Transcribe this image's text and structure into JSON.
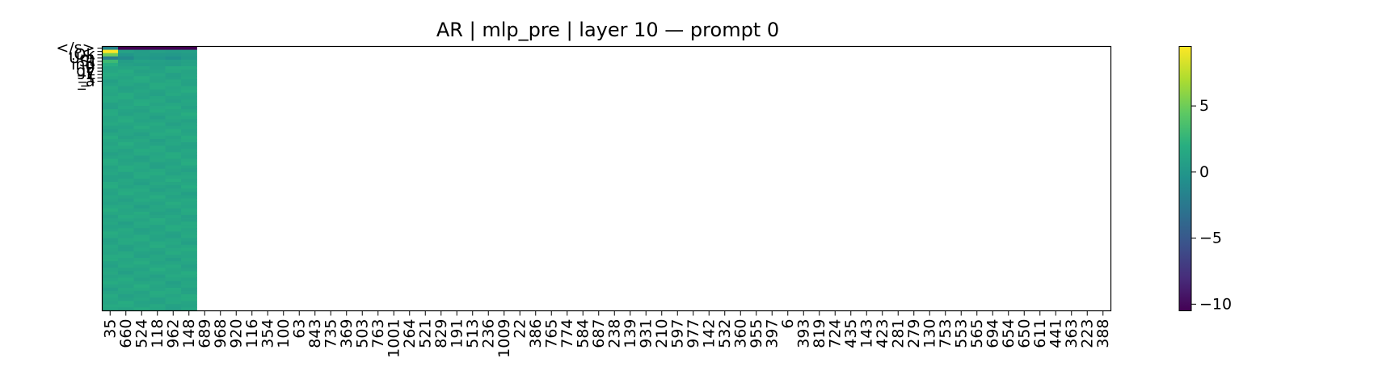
{
  "chart_data": {
    "type": "heatmap",
    "title": "AR | mlp_pre | layer 10 — prompt 0",
    "xlabel": "",
    "ylabel": "",
    "x_tick_labels": [
      "35",
      "660",
      "524",
      "118",
      "962",
      "148",
      "689",
      "968",
      "920",
      "116",
      "354",
      "100",
      "63",
      "843",
      "735",
      "369",
      "503",
      "763",
      "1001",
      "264",
      "521",
      "829",
      "191",
      "513",
      "236",
      "1009",
      "22",
      "386",
      "765",
      "774",
      "584",
      "687",
      "238",
      "139",
      "931",
      "210",
      "597",
      "977",
      "142",
      "532",
      "360",
      "955",
      "397",
      "6",
      "393",
      "819",
      "724",
      "435",
      "143",
      "423",
      "281",
      "279",
      "130",
      "753",
      "553",
      "565",
      "694",
      "654",
      "650",
      "611",
      "441",
      "363",
      "223",
      "388"
    ],
    "y_tick_labels": [
      "</s>",
      "",
      "Ok",
      "Um",
      "St",
      "ing",
      "_P",
      "gy",
      "_L",
      "_t",
      "_a"
    ],
    "n_rows": 80,
    "n_filled_columns": 6,
    "row_values": {
      "row0": [
        -1.5,
        -10.5,
        -10.5,
        -10.5,
        -10.5,
        -10.5
      ],
      "row1": [
        9.5,
        1.0,
        0.5,
        0.8,
        0.6,
        0.7
      ],
      "row2": [
        5.0,
        0.0,
        0.5,
        0.3,
        0.2,
        0.4
      ],
      "row3": [
        -2.0,
        -1.0,
        0.3,
        0.0,
        -0.5,
        0.2
      ],
      "row4": [
        3.0,
        0.5,
        1.0,
        0.8,
        0.6,
        0.9
      ],
      "row5": [
        2.0,
        0.8,
        0.6,
        0.7,
        0.5,
        1.0
      ],
      "rest_typical": 1.3
    },
    "colormap": "viridis",
    "colorbar": {
      "min": -10.5,
      "max": 9.5,
      "ticks": [
        5,
        0,
        -5,
        -10
      ],
      "tick_labels": [
        "5",
        "0",
        "−5",
        "−10"
      ]
    }
  }
}
